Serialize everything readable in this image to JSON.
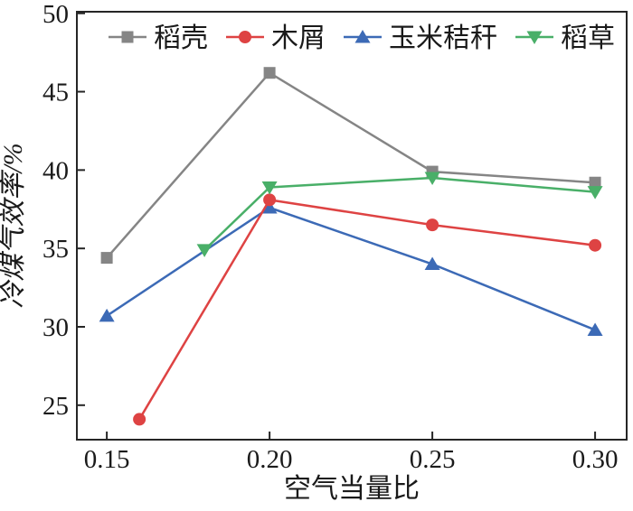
{
  "chart_data": {
    "type": "line",
    "title": "",
    "xlabel": "空气当量比",
    "ylabel": "冷煤气效率/%",
    "grid": false,
    "legend_position": "top-inside-horizontal",
    "axis_color": "#262626",
    "xlim": [
      0.1408,
      0.3097
    ],
    "ylim": [
      22.8,
      50.1
    ],
    "x_ticks": [
      {
        "value": 0.15,
        "label": "0.15"
      },
      {
        "value": 0.2,
        "label": "0.20"
      },
      {
        "value": 0.25,
        "label": "0.25"
      },
      {
        "value": 0.3,
        "label": "0.30"
      }
    ],
    "y_ticks": [
      {
        "value": 25,
        "label": "25"
      },
      {
        "value": 30,
        "label": "30"
      },
      {
        "value": 35,
        "label": "35"
      },
      {
        "value": 40,
        "label": "40"
      },
      {
        "value": 45,
        "label": "45"
      },
      {
        "value": 50,
        "label": "50"
      }
    ],
    "draw_order": [
      0,
      2,
      1,
      3
    ],
    "series": [
      {
        "name": "稻壳",
        "color": "#858585",
        "marker": "square",
        "x": [
          0.15,
          0.2,
          0.25,
          0.3
        ],
        "y": [
          34.4,
          46.2,
          39.9,
          39.2
        ]
      },
      {
        "name": "木屑",
        "color": "#de4343",
        "marker": "circle",
        "x": [
          0.16,
          0.2,
          0.25,
          0.3
        ],
        "y": [
          24.1,
          38.1,
          36.5,
          35.2
        ]
      },
      {
        "name": "玉米秸秆",
        "color": "#3c6ab6",
        "marker": "triangle-up",
        "x": [
          0.15,
          0.2,
          0.25,
          0.3
        ],
        "y": [
          30.7,
          37.6,
          34.0,
          29.8
        ]
      },
      {
        "name": "稻草",
        "color": "#49af68",
        "marker": "triangle-down",
        "x": [
          0.18,
          0.2,
          0.25,
          0.3
        ],
        "y": [
          34.9,
          38.9,
          39.5,
          38.6
        ]
      }
    ]
  }
}
